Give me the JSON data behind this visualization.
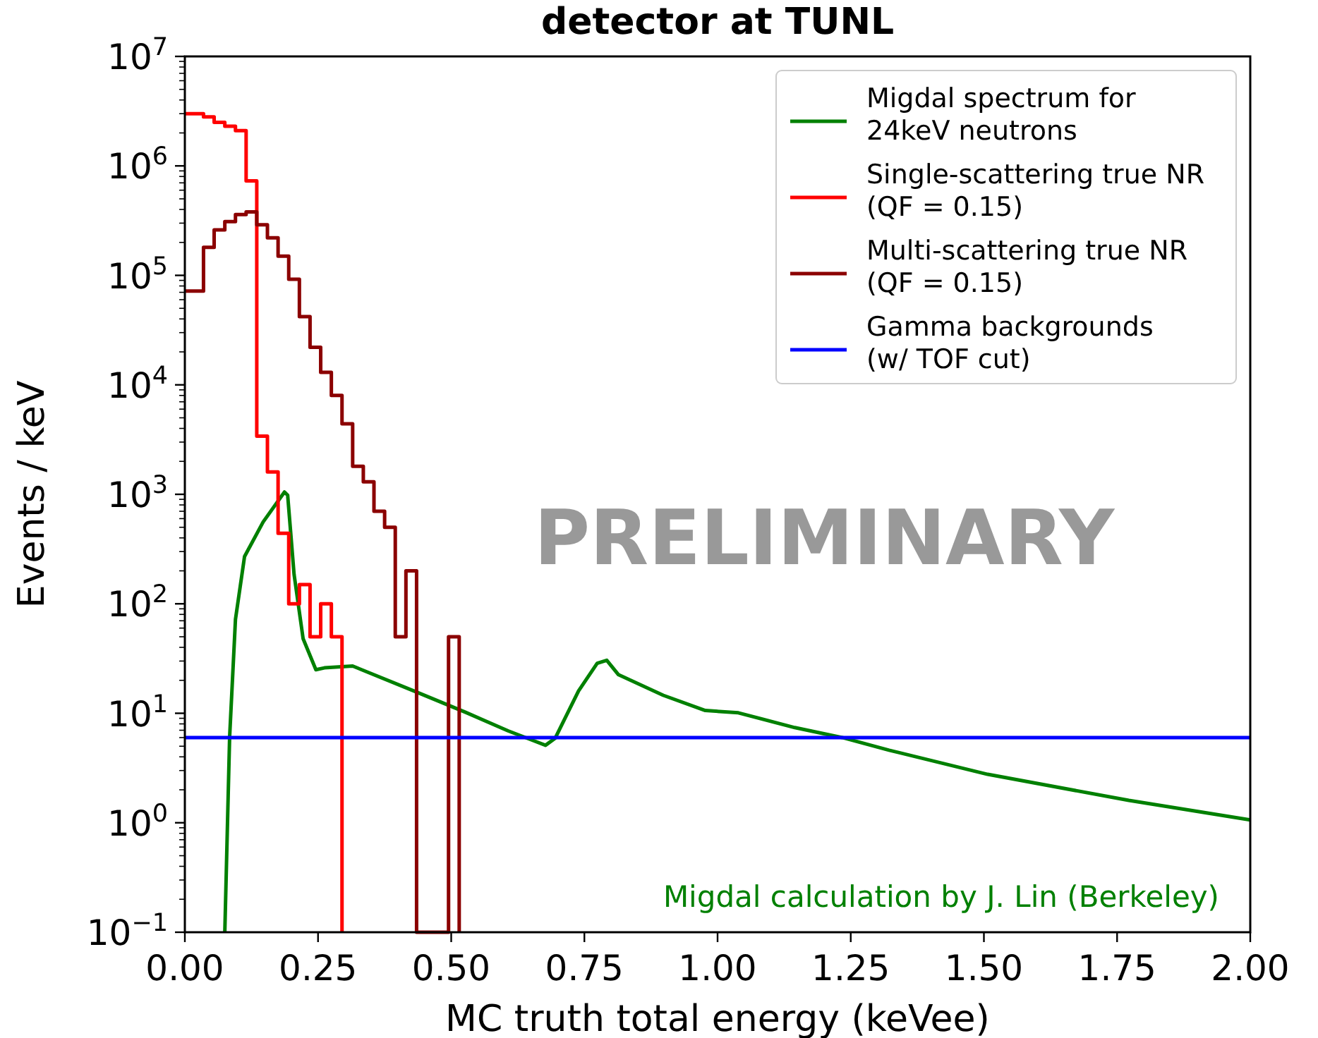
{
  "chart_data": {
    "type": "line",
    "title": "detector at TUNL",
    "xlabel": "MC truth total energy (keVee)",
    "ylabel": "Events / keV",
    "log": "y",
    "legend": "top right",
    "xlim": [
      0,
      2
    ],
    "ylim": [
      0.1,
      10000000
    ],
    "xticks": [
      {
        "value": 0,
        "label": "0.00"
      },
      {
        "value": 0.25,
        "label": "0.25"
      },
      {
        "value": 0.5,
        "label": "0.50"
      },
      {
        "value": 0.75,
        "label": "0.75"
      },
      {
        "value": 1,
        "label": "1.00"
      },
      {
        "value": 1.25,
        "label": "1.25"
      },
      {
        "value": 1.5,
        "label": "1.50"
      },
      {
        "value": 1.75,
        "label": "1.75"
      },
      {
        "value": 2,
        "label": "2.00"
      }
    ],
    "yticks": [
      {
        "value": 0.1,
        "label": "10$^{−1}$"
      },
      {
        "value": 1,
        "label": "10$^{0}$"
      },
      {
        "value": 10,
        "label": "10$^{1}$"
      },
      {
        "value": 100,
        "label": "10$^{2}$"
      },
      {
        "value": 1000,
        "label": "10$^{3}$"
      },
      {
        "value": 10000,
        "label": "10$^{4}$"
      },
      {
        "value": 100000,
        "label": "10$^{5}$"
      },
      {
        "value": 1000000,
        "label": "10$^{6}$"
      },
      {
        "value": 10000000,
        "label": "10$^{7}$"
      }
    ],
    "bins": [
      0,
      0.035,
      0.055,
      0.075,
      0.095,
      0.115,
      0.135,
      0.155,
      0.175,
      0.195,
      0.215,
      0.235,
      0.255,
      0.275,
      0.295,
      0.315,
      0.335,
      0.355,
      0.375,
      0.395,
      0.415,
      0.435,
      0.455,
      0.475,
      0.495,
      0.515
    ],
    "series": [
      {
        "name": "Migdal spectrum for\n24keV neutrons",
        "color": "#008000",
        "x": [
          0.075,
          0.084,
          0.095,
          0.112,
          0.147,
          0.187,
          0.193,
          0.205,
          0.222,
          0.246,
          0.262,
          0.315,
          0.43,
          0.527,
          0.607,
          0.677,
          0.695,
          0.739,
          0.774,
          0.792,
          0.814,
          0.898,
          0.977,
          1.039,
          1.145,
          1.234,
          1.322,
          1.507,
          1.772,
          2.0
        ],
        "values": [
          0.1,
          6,
          72,
          270,
          560,
          1050,
          980,
          186,
          48,
          25,
          26,
          27,
          16,
          10.2,
          6.9,
          5.1,
          5.9,
          16,
          28.6,
          30.5,
          22.5,
          14.6,
          10.6,
          10.1,
          7.4,
          6.0,
          4.6,
          2.77,
          1.6,
          1.06
        ]
      },
      {
        "name": "Single-scattering true NR\n(QF = 0.15)",
        "type": "histogram",
        "color": "#ff0000",
        "bins": [
          0,
          0.035,
          0.055,
          0.075,
          0.095,
          0.115,
          0.135,
          0.155,
          0.175,
          0.195,
          0.215,
          0.235,
          0.255,
          0.275,
          0.295
        ],
        "values": [
          3000000,
          2800000,
          2500000,
          2300000,
          2100000,
          730000,
          3400,
          1600,
          440,
          100,
          150,
          50,
          100,
          50
        ]
      },
      {
        "name": "Multi-scattering true NR\n(QF = 0.15)",
        "type": "histogram",
        "color": "#8b0000",
        "values": [
          72000,
          180000,
          260000,
          310000,
          360000,
          380000,
          290000,
          220000,
          150000,
          92000,
          42000,
          22000,
          13000,
          8000,
          4400,
          1800,
          1300,
          700,
          500,
          50,
          200,
          null,
          null,
          null,
          50
        ]
      },
      {
        "name": "Gamma backgrounds\n(w/ TOF cut)",
        "color": "#0000ff",
        "x": [
          0,
          2
        ],
        "values": [
          6,
          6
        ]
      }
    ],
    "annotations": [
      "PRELIMINARY",
      "Migdal calculation by J. Lin (Berkeley)"
    ]
  }
}
